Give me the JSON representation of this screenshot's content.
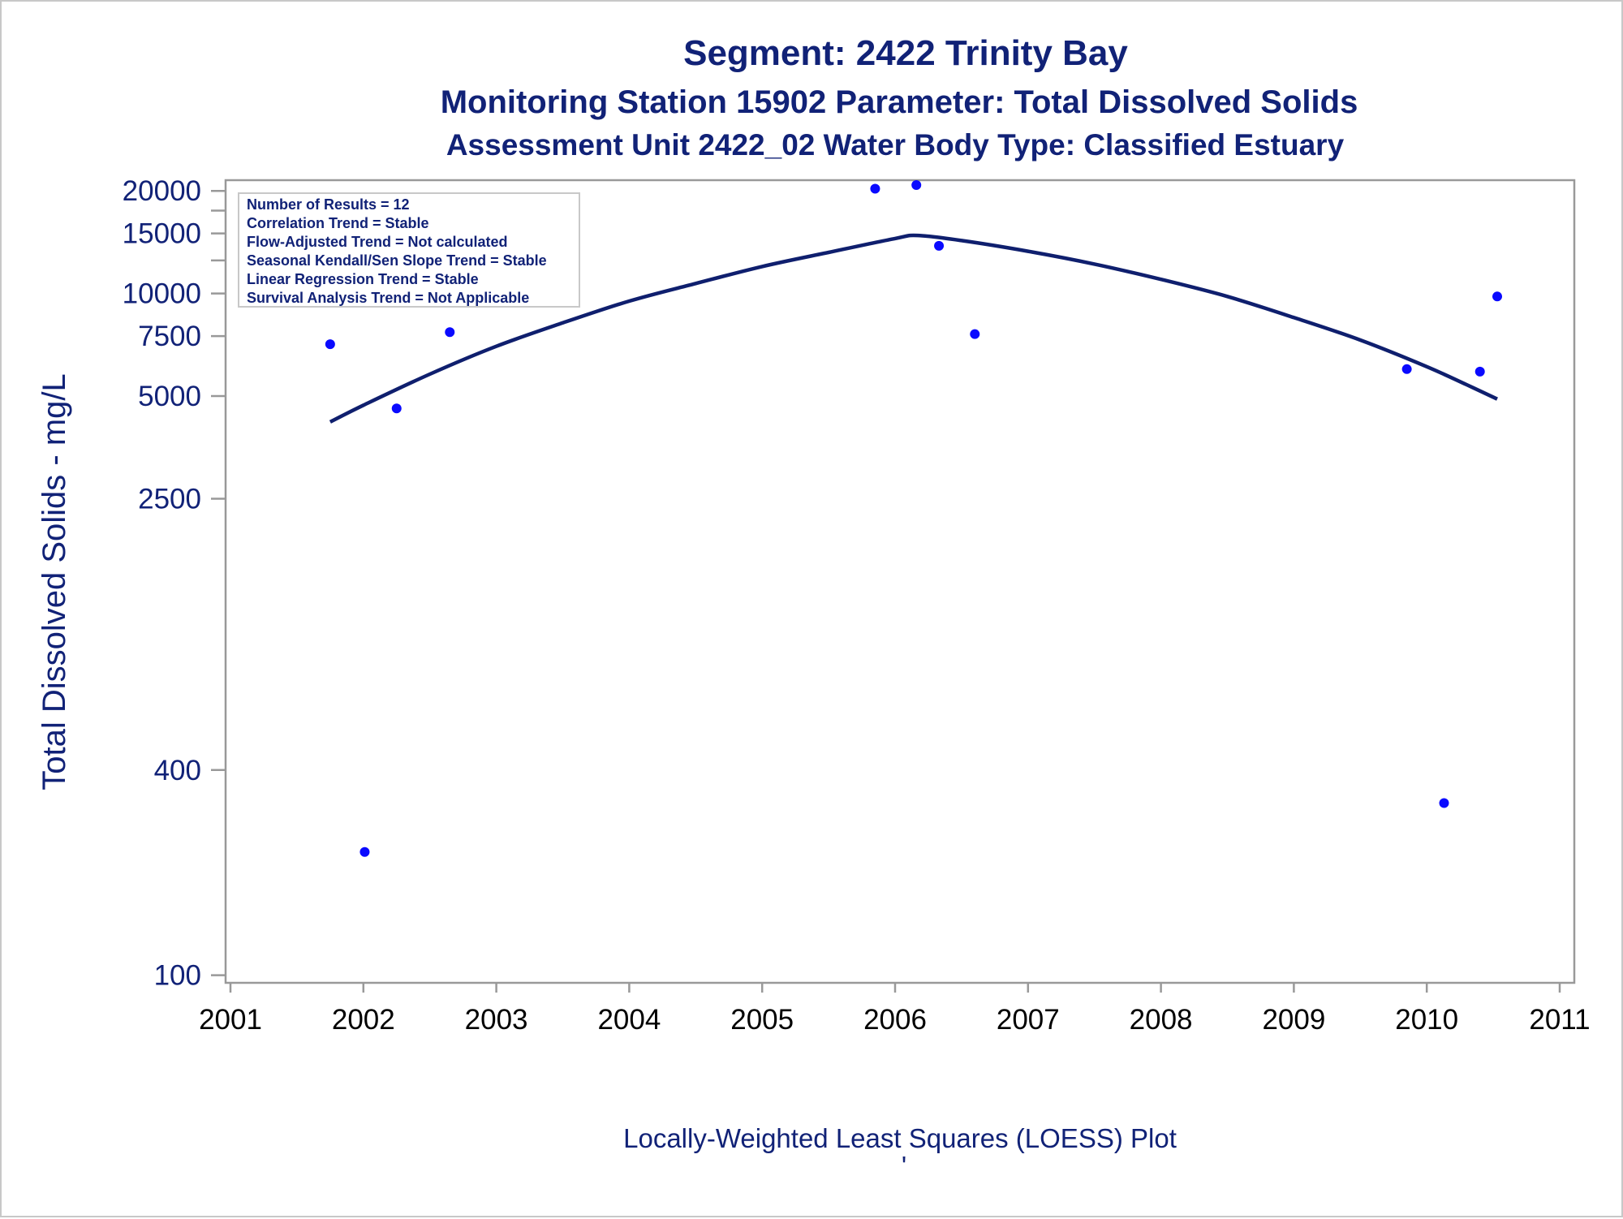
{
  "titles": {
    "line1": "Segment: 2422  Trinity Bay",
    "line2": "Monitoring Station 15902 Parameter: Total Dissolved Solids",
    "line3": "Assessment Unit 2422_02   Water Body Type: Classified Estuary"
  },
  "stats_box": [
    "Number of Results = 12",
    "Correlation Trend = Stable",
    "Flow-Adjusted Trend = Not calculated",
    "Seasonal Kendall/Sen Slope Trend = Stable",
    "Linear Regression Trend = Stable",
    "Survival Analysis Trend = Not Applicable"
  ],
  "footer": {
    "caption": "Locally-Weighted Least Squares (LOESS) Plot",
    "mark": "'"
  },
  "colors": {
    "text": "#112277",
    "points": "#0a0aff",
    "curve": "#0f1f6e",
    "axis": "#999999",
    "x_ticks": "#000000"
  },
  "chart_data": {
    "type": "scatter",
    "title": "",
    "xlabel": "",
    "ylabel": "Total Dissolved Solids - mg/L",
    "y_scale": "log",
    "xlim": [
      2001,
      2011
    ],
    "ylim": [
      95,
      21500
    ],
    "x_ticks": [
      "2001",
      "2002",
      "2003",
      "2004",
      "2005",
      "2006",
      "2007",
      "2008",
      "2009",
      "2010",
      "2011"
    ],
    "y_ticks": [
      100,
      400,
      2500,
      5000,
      7500,
      10000,
      15000,
      20000
    ],
    "y_minor_ticks": [
      12500,
      17500
    ],
    "grid": false,
    "series": [
      {
        "kind": "points",
        "x": [
          2001.75,
          2002.01,
          2002.25,
          2002.65,
          2005.85,
          2006.16,
          2006.33,
          2006.6,
          2009.85,
          2010.13,
          2010.4,
          2010.53
        ],
        "y": [
          7100,
          230,
          4600,
          7700,
          20300,
          20800,
          13800,
          7600,
          6000,
          320,
          5900,
          9800
        ]
      },
      {
        "kind": "loess_curve",
        "x": [
          2001.75,
          2002.0,
          2002.5,
          2003.0,
          2003.5,
          2004.0,
          2004.5,
          2005.0,
          2005.5,
          2006.0,
          2006.17,
          2006.5,
          2007.0,
          2007.5,
          2008.0,
          2008.5,
          2009.0,
          2009.5,
          2010.0,
          2010.3,
          2010.53
        ],
        "y": [
          4200,
          4700,
          5800,
          7000,
          8200,
          9500,
          10700,
          12000,
          13200,
          14500,
          14800,
          14300,
          13300,
          12200,
          11000,
          9800,
          8500,
          7300,
          6100,
          5400,
          4900
        ]
      }
    ],
    "legend": "stats box, top-left"
  }
}
